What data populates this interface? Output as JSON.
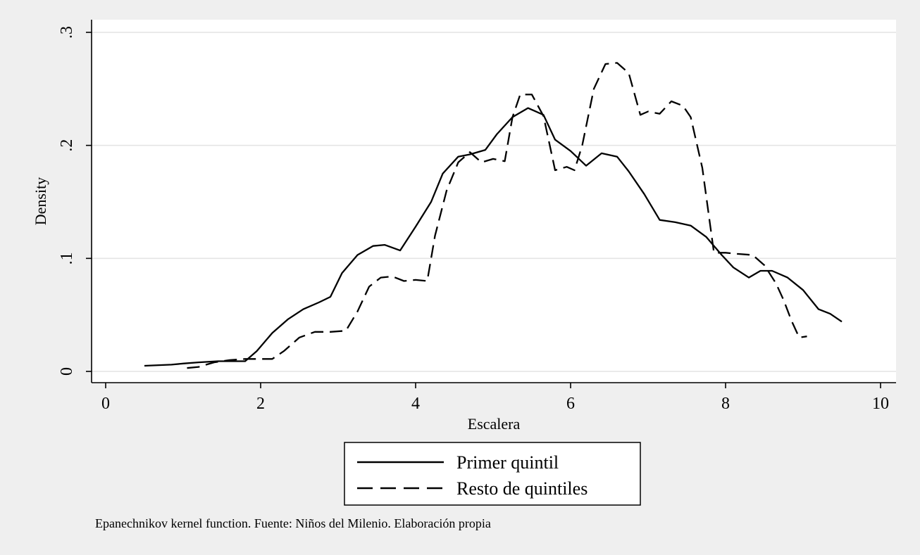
{
  "chart_data": {
    "type": "line",
    "title": "",
    "xlabel": "Escalera",
    "ylabel": "Density",
    "xlim": [
      0,
      10
    ],
    "ylim": [
      0,
      0.3
    ],
    "x_ticks": [
      0,
      2,
      4,
      6,
      8,
      10
    ],
    "x_tick_labels": [
      "0",
      "2",
      "4",
      "6",
      "8",
      "10"
    ],
    "y_ticks": [
      0,
      0.1,
      0.2,
      0.3
    ],
    "y_tick_labels": [
      "0",
      ".1",
      ".2",
      ".3"
    ],
    "grid": "horizontal",
    "legend_position": "bottom",
    "note": "Epanechnikov kernel function. Fuente: Niños del Milenio. Elaboración propia",
    "series": [
      {
        "name": "Primer quintil",
        "style": "solid",
        "x": [
          0.5,
          0.85,
          1.0,
          1.2,
          1.45,
          1.65,
          1.8,
          1.95,
          2.15,
          2.35,
          2.55,
          2.75,
          2.9,
          3.05,
          3.25,
          3.45,
          3.6,
          3.8,
          4.0,
          4.2,
          4.35,
          4.55,
          4.7,
          4.9,
          5.05,
          5.25,
          5.45,
          5.65,
          5.8,
          6.0,
          6.2,
          6.4,
          6.6,
          6.75,
          6.95,
          7.15,
          7.35,
          7.55,
          7.75,
          7.95,
          8.1,
          8.3,
          8.45,
          8.6,
          8.8,
          9.0,
          9.2,
          9.35,
          9.5
        ],
        "y": [
          0.005,
          0.006,
          0.007,
          0.008,
          0.009,
          0.009,
          0.009,
          0.018,
          0.034,
          0.046,
          0.055,
          0.061,
          0.066,
          0.087,
          0.103,
          0.111,
          0.112,
          0.107,
          0.128,
          0.15,
          0.175,
          0.19,
          0.192,
          0.196,
          0.21,
          0.225,
          0.233,
          0.227,
          0.205,
          0.195,
          0.182,
          0.193,
          0.19,
          0.177,
          0.157,
          0.134,
          0.132,
          0.129,
          0.119,
          0.103,
          0.092,
          0.083,
          0.089,
          0.089,
          0.083,
          0.072,
          0.055,
          0.051,
          0.044
        ]
      },
      {
        "name": "Resto de quintiles",
        "style": "dashed",
        "x": [
          1.05,
          1.2,
          1.4,
          1.6,
          1.8,
          2.0,
          2.15,
          2.3,
          2.5,
          2.7,
          2.9,
          3.1,
          3.25,
          3.4,
          3.55,
          3.7,
          3.85,
          4.0,
          4.15,
          4.25,
          4.4,
          4.55,
          4.7,
          4.85,
          5.0,
          5.15,
          5.25,
          5.35,
          5.5,
          5.65,
          5.8,
          5.95,
          6.05,
          6.15,
          6.3,
          6.45,
          6.6,
          6.75,
          6.9,
          7.0,
          7.15,
          7.3,
          7.45,
          7.55,
          7.7,
          7.85,
          8.0,
          8.15,
          8.35,
          8.5,
          8.65,
          8.75,
          8.85,
          8.95,
          9.05
        ],
        "y": [
          0.003,
          0.004,
          0.008,
          0.01,
          0.011,
          0.011,
          0.011,
          0.018,
          0.03,
          0.035,
          0.035,
          0.036,
          0.053,
          0.075,
          0.083,
          0.084,
          0.08,
          0.081,
          0.08,
          0.12,
          0.16,
          0.185,
          0.194,
          0.185,
          0.188,
          0.186,
          0.225,
          0.245,
          0.245,
          0.226,
          0.178,
          0.181,
          0.178,
          0.2,
          0.25,
          0.272,
          0.273,
          0.264,
          0.227,
          0.23,
          0.228,
          0.239,
          0.235,
          0.225,
          0.18,
          0.105,
          0.105,
          0.104,
          0.103,
          0.094,
          0.078,
          0.063,
          0.045,
          0.03,
          0.031
        ]
      }
    ]
  }
}
